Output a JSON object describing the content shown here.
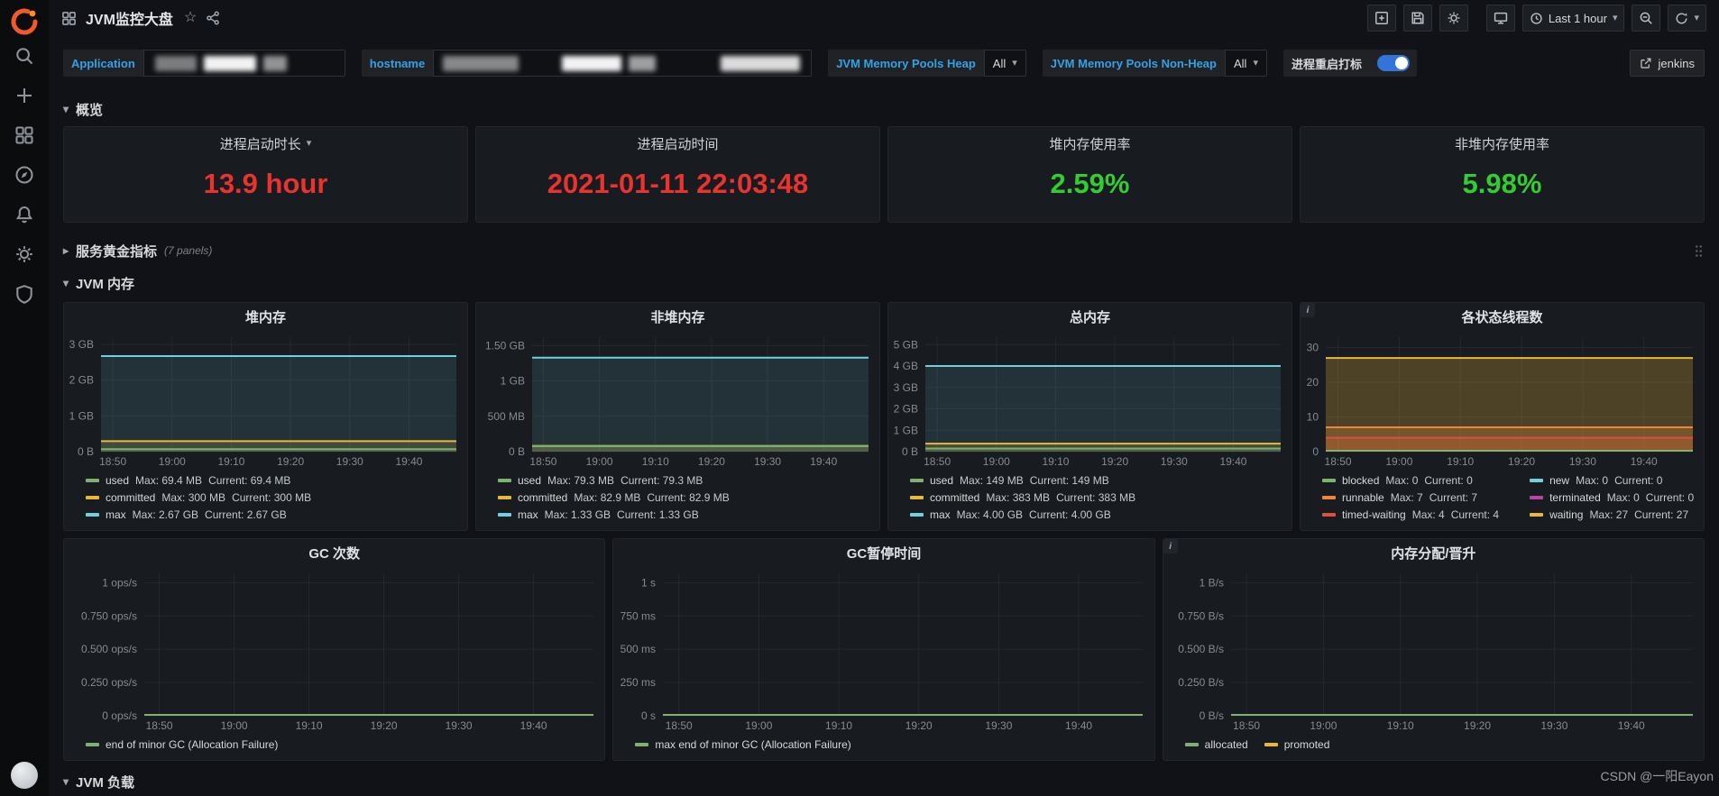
{
  "nav": {
    "title": "JVM监控大盘",
    "time_range": "Last 1 hour"
  },
  "icons": {
    "star": "☆",
    "caret_down": "▾",
    "caret_right": "▸",
    "info": "i"
  },
  "variables": [
    {
      "label": "Application",
      "value": ""
    },
    {
      "label": "hostname",
      "value": ""
    },
    {
      "label": "JVM Memory Pools Heap",
      "value": "All"
    },
    {
      "label": "JVM Memory Pools Non-Heap",
      "value": "All"
    },
    {
      "label": "进程重启打标",
      "state": "on"
    }
  ],
  "jenkins_button": "jenkins",
  "rows": {
    "overview": "概览",
    "golden": "服务黄金指标",
    "golden_count": "(7 panels)",
    "jvm_memory": "JVM 内存",
    "jvm_load": "JVM 负载"
  },
  "stats": [
    {
      "title": "进程启动时长",
      "value": "13.9 hour",
      "value_color": "#e8332e"
    },
    {
      "title": "进程启动时间",
      "value": "2021-01-11 22:03:48",
      "value_color": "#e8332e"
    },
    {
      "title": "堆内存使用率",
      "value": "2.59%",
      "value_color": "#33cc33"
    },
    {
      "title": "非堆内存使用率",
      "value": "5.98%",
      "value_color": "#33cc33"
    }
  ],
  "colors": {
    "variable_label_blue": "#33a2e5",
    "stat_red": "#e8332e",
    "stat_green": "#33cc33",
    "toggle_on_blue": "#3274d9"
  },
  "charts": {
    "heap": {
      "type": "line",
      "title": "堆内存",
      "y_max": 3.2,
      "y_ticks": [
        {
          "v": 0,
          "label": "0 B"
        },
        {
          "v": 1,
          "label": "1 GB"
        },
        {
          "v": 2,
          "label": "2 GB"
        },
        {
          "v": 3,
          "label": "3 GB"
        }
      ],
      "x_ticks": [
        "18:50",
        "19:00",
        "19:10",
        "19:20",
        "19:30",
        "19:40"
      ],
      "series": [
        {
          "name": "used",
          "color": "#7EB26D",
          "value": 0.068,
          "fill": 0.18,
          "max": "Max: 69.4 MB",
          "current": "Current: 69.4 MB"
        },
        {
          "name": "committed",
          "color": "#EAB839",
          "value": 0.293,
          "fill": 0.18,
          "max": "Max: 300 MB",
          "current": "Current: 300 MB"
        },
        {
          "name": "max",
          "color": "#6ED0E0",
          "value": 2.67,
          "fill": 0.13,
          "max": "Max: 2.67 GB",
          "current": "Current: 2.67 GB"
        }
      ]
    },
    "nonheap": {
      "type": "line",
      "title": "非堆内存",
      "y_max": 1.62,
      "y_ticks": [
        {
          "v": 0,
          "label": "0 B"
        },
        {
          "v": 0.5,
          "label": "500 MB"
        },
        {
          "v": 1,
          "label": "1 GB"
        },
        {
          "v": 1.5,
          "label": "1.50 GB"
        }
      ],
      "x_ticks": [
        "18:50",
        "19:00",
        "19:10",
        "19:20",
        "19:30",
        "19:40"
      ],
      "series": [
        {
          "name": "used",
          "color": "#7EB26D",
          "value": 0.0775,
          "fill": 0.18,
          "max": "Max: 79.3 MB",
          "current": "Current: 79.3 MB"
        },
        {
          "name": "committed",
          "color": "#EAB839",
          "value": 0.081,
          "fill": 0.18,
          "max": "Max: 82.9 MB",
          "current": "Current: 82.9 MB"
        },
        {
          "name": "max",
          "color": "#6ED0E0",
          "value": 1.33,
          "fill": 0.13,
          "max": "Max: 1.33 GB",
          "current": "Current: 1.33 GB"
        }
      ]
    },
    "total": {
      "type": "line",
      "title": "总内存",
      "y_max": 5.35,
      "y_ticks": [
        {
          "v": 0,
          "label": "0 B"
        },
        {
          "v": 1,
          "label": "1 GB"
        },
        {
          "v": 2,
          "label": "2 GB"
        },
        {
          "v": 3,
          "label": "3 GB"
        },
        {
          "v": 4,
          "label": "4 GB"
        },
        {
          "v": 5,
          "label": "5 GB"
        }
      ],
      "x_ticks": [
        "18:50",
        "19:00",
        "19:10",
        "19:20",
        "19:30",
        "19:40"
      ],
      "series": [
        {
          "name": "used",
          "color": "#7EB26D",
          "value": 0.145,
          "fill": 0.18,
          "max": "Max: 149 MB",
          "current": "Current: 149 MB"
        },
        {
          "name": "committed",
          "color": "#EAB839",
          "value": 0.374,
          "fill": 0.18,
          "max": "Max: 383 MB",
          "current": "Current: 383 MB"
        },
        {
          "name": "max",
          "color": "#6ED0E0",
          "value": 4.0,
          "fill": 0.13,
          "max": "Max: 4.00 GB",
          "current": "Current: 4.00 GB"
        }
      ]
    },
    "threads": {
      "type": "line",
      "title": "各状态线程数",
      "y_max": 33,
      "y_ticks": [
        {
          "v": 0,
          "label": "0"
        },
        {
          "v": 10,
          "label": "10"
        },
        {
          "v": 20,
          "label": "20"
        },
        {
          "v": 30,
          "label": "30"
        }
      ],
      "x_ticks": [
        "18:50",
        "19:00",
        "19:10",
        "19:20",
        "19:30",
        "19:40"
      ],
      "series": [
        {
          "name": "blocked",
          "color": "#7EB26D",
          "value": 0,
          "fill": 0,
          "max": "Max: 0",
          "current": "Current: 0"
        },
        {
          "name": "runnable",
          "color": "#EF843C",
          "value": 7,
          "fill": 0.25,
          "max": "Max: 7",
          "current": "Current: 7"
        },
        {
          "name": "timed-waiting",
          "color": "#E24D42",
          "value": 4,
          "fill": 0.25,
          "max": "Max: 4",
          "current": "Current: 4"
        },
        {
          "name": "new",
          "color": "#6ED0E0",
          "value": 0,
          "fill": 0,
          "max": "Max: 0",
          "current": "Current: 0"
        },
        {
          "name": "terminated",
          "color": "#BA43A9",
          "value": 0,
          "fill": 0,
          "max": "Max: 0",
          "current": "Current: 0"
        },
        {
          "name": "waiting",
          "color": "#EAB839",
          "value": 27,
          "fill": 0.25,
          "max": "Max: 27",
          "current": "Current: 27"
        }
      ]
    },
    "gc_count": {
      "type": "line",
      "title": "GC 次数",
      "y_max": 1.07,
      "y_ticks": [
        {
          "v": 0,
          "label": "0 ops/s"
        },
        {
          "v": 0.25,
          "label": "0.250 ops/s"
        },
        {
          "v": 0.5,
          "label": "0.500 ops/s"
        },
        {
          "v": 0.75,
          "label": "0.750 ops/s"
        },
        {
          "v": 1,
          "label": "1 ops/s"
        }
      ],
      "x_ticks": [
        "18:50",
        "19:00",
        "19:10",
        "19:20",
        "19:30",
        "19:40"
      ],
      "series": [
        {
          "name": "end of minor GC (Allocation Failure)",
          "color": "#7EB26D",
          "value": 0,
          "fill": 0
        }
      ]
    },
    "gc_pause": {
      "type": "line",
      "title": "GC暂停时间",
      "y_max": 1.07,
      "y_ticks": [
        {
          "v": 0,
          "label": "0 s"
        },
        {
          "v": 0.25,
          "label": "250 ms"
        },
        {
          "v": 0.5,
          "label": "500 ms"
        },
        {
          "v": 0.75,
          "label": "750 ms"
        },
        {
          "v": 1,
          "label": "1 s"
        }
      ],
      "x_ticks": [
        "18:50",
        "19:00",
        "19:10",
        "19:20",
        "19:30",
        "19:40"
      ],
      "series": [
        {
          "name": "max end of minor GC (Allocation Failure)",
          "color": "#7EB26D",
          "value": 0,
          "fill": 0
        }
      ]
    },
    "alloc": {
      "type": "line",
      "title": "内存分配/晋升",
      "y_max": 1.07,
      "y_ticks": [
        {
          "v": 0,
          "label": "0 B/s"
        },
        {
          "v": 0.25,
          "label": "0.250 B/s"
        },
        {
          "v": 0.5,
          "label": "0.500 B/s"
        },
        {
          "v": 0.75,
          "label": "0.750 B/s"
        },
        {
          "v": 1,
          "label": "1 B/s"
        }
      ],
      "x_ticks": [
        "18:50",
        "19:00",
        "19:10",
        "19:20",
        "19:30",
        "19:40"
      ],
      "series": [
        {
          "name": "allocated",
          "color": "#7EB26D",
          "value": 0,
          "fill": 0
        },
        {
          "name": "promoted",
          "color": "#EAB839",
          "value": 0,
          "fill": 0
        }
      ]
    }
  },
  "watermark": "CSDN @一阳Eayon"
}
